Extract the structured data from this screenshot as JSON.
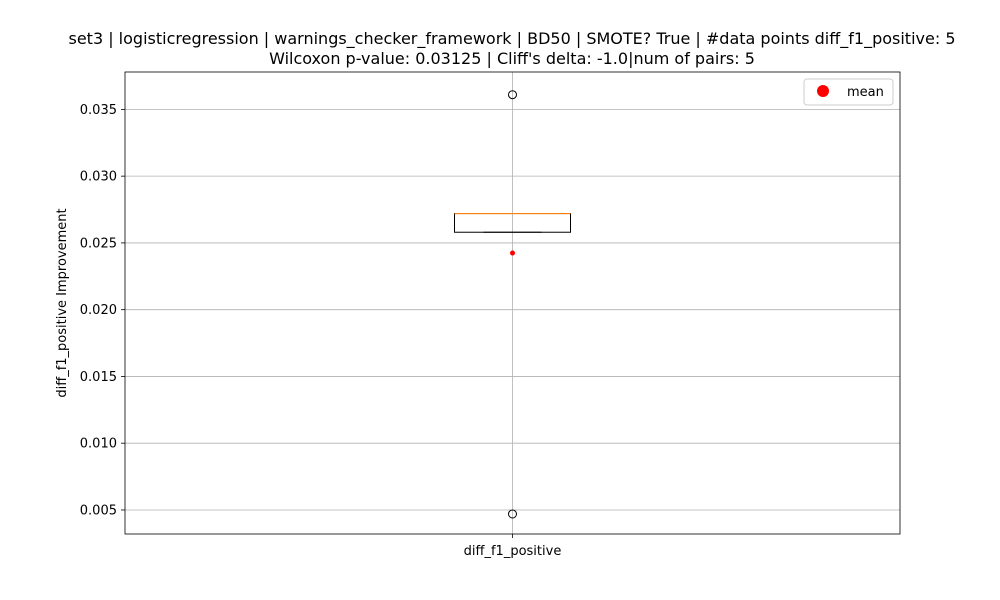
{
  "chart_data": {
    "type": "box",
    "title_line1": "set3 | logisticregression | warnings_checker_framework | BD50 | SMOTE? True | #data points diff_f1_positive: 5",
    "title_line2": "Wilcoxon p-value: 0.03125 | Cliff's delta: -1.0|num of pairs: 5",
    "xlabel": "",
    "ylabel": "diff_f1_positive Improvement",
    "categories": [
      "diff_f1_positive"
    ],
    "ylim": [
      0.0032,
      0.0378
    ],
    "yticks": [
      0.005,
      0.01,
      0.015,
      0.02,
      0.025,
      0.03,
      0.035
    ],
    "ytick_labels": [
      "0.005",
      "0.010",
      "0.015",
      "0.020",
      "0.025",
      "0.030",
      "0.035"
    ],
    "grid": true,
    "legend": {
      "position": "top-right",
      "entries": [
        {
          "label": "mean",
          "color": "#ff0000",
          "marker": "circle"
        }
      ]
    },
    "box": {
      "whisker_low": 0.0258,
      "q1": 0.0258,
      "median": 0.0272,
      "q3": 0.0272,
      "whisker_high": 0.0272,
      "mean": 0.02424,
      "outliers": [
        0.0361,
        0.0047
      ]
    },
    "colors": {
      "median": "#ff7f0e",
      "mean": "#ff0000",
      "box": "#000000",
      "grid": "#b0b0b0"
    }
  }
}
